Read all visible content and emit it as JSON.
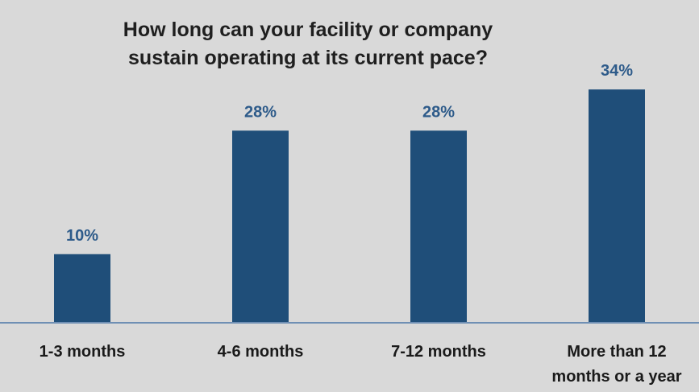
{
  "chart_data": {
    "type": "bar",
    "title_lines": [
      "How long can your facility or company",
      "sustain operating at its current pace?"
    ],
    "categories": [
      [
        "1-3 months"
      ],
      [
        "4-6 months"
      ],
      [
        "7-12 months"
      ],
      [
        "More than 12",
        "months or a year"
      ]
    ],
    "values": [
      10,
      28,
      28,
      34
    ],
    "value_labels": [
      "10%",
      "28%",
      "28%",
      "34%"
    ],
    "ylim": [
      0,
      40
    ],
    "xlabel": "",
    "ylabel": "",
    "grid": false,
    "legend": "none"
  },
  "colors": {
    "background": "#d9d9d9",
    "bar": "#1f4e79",
    "value_label": "#2e5b8a",
    "axis_line": "#6f8fb4",
    "title": "#1f1f1f",
    "category_label": "#1a1a1a"
  }
}
